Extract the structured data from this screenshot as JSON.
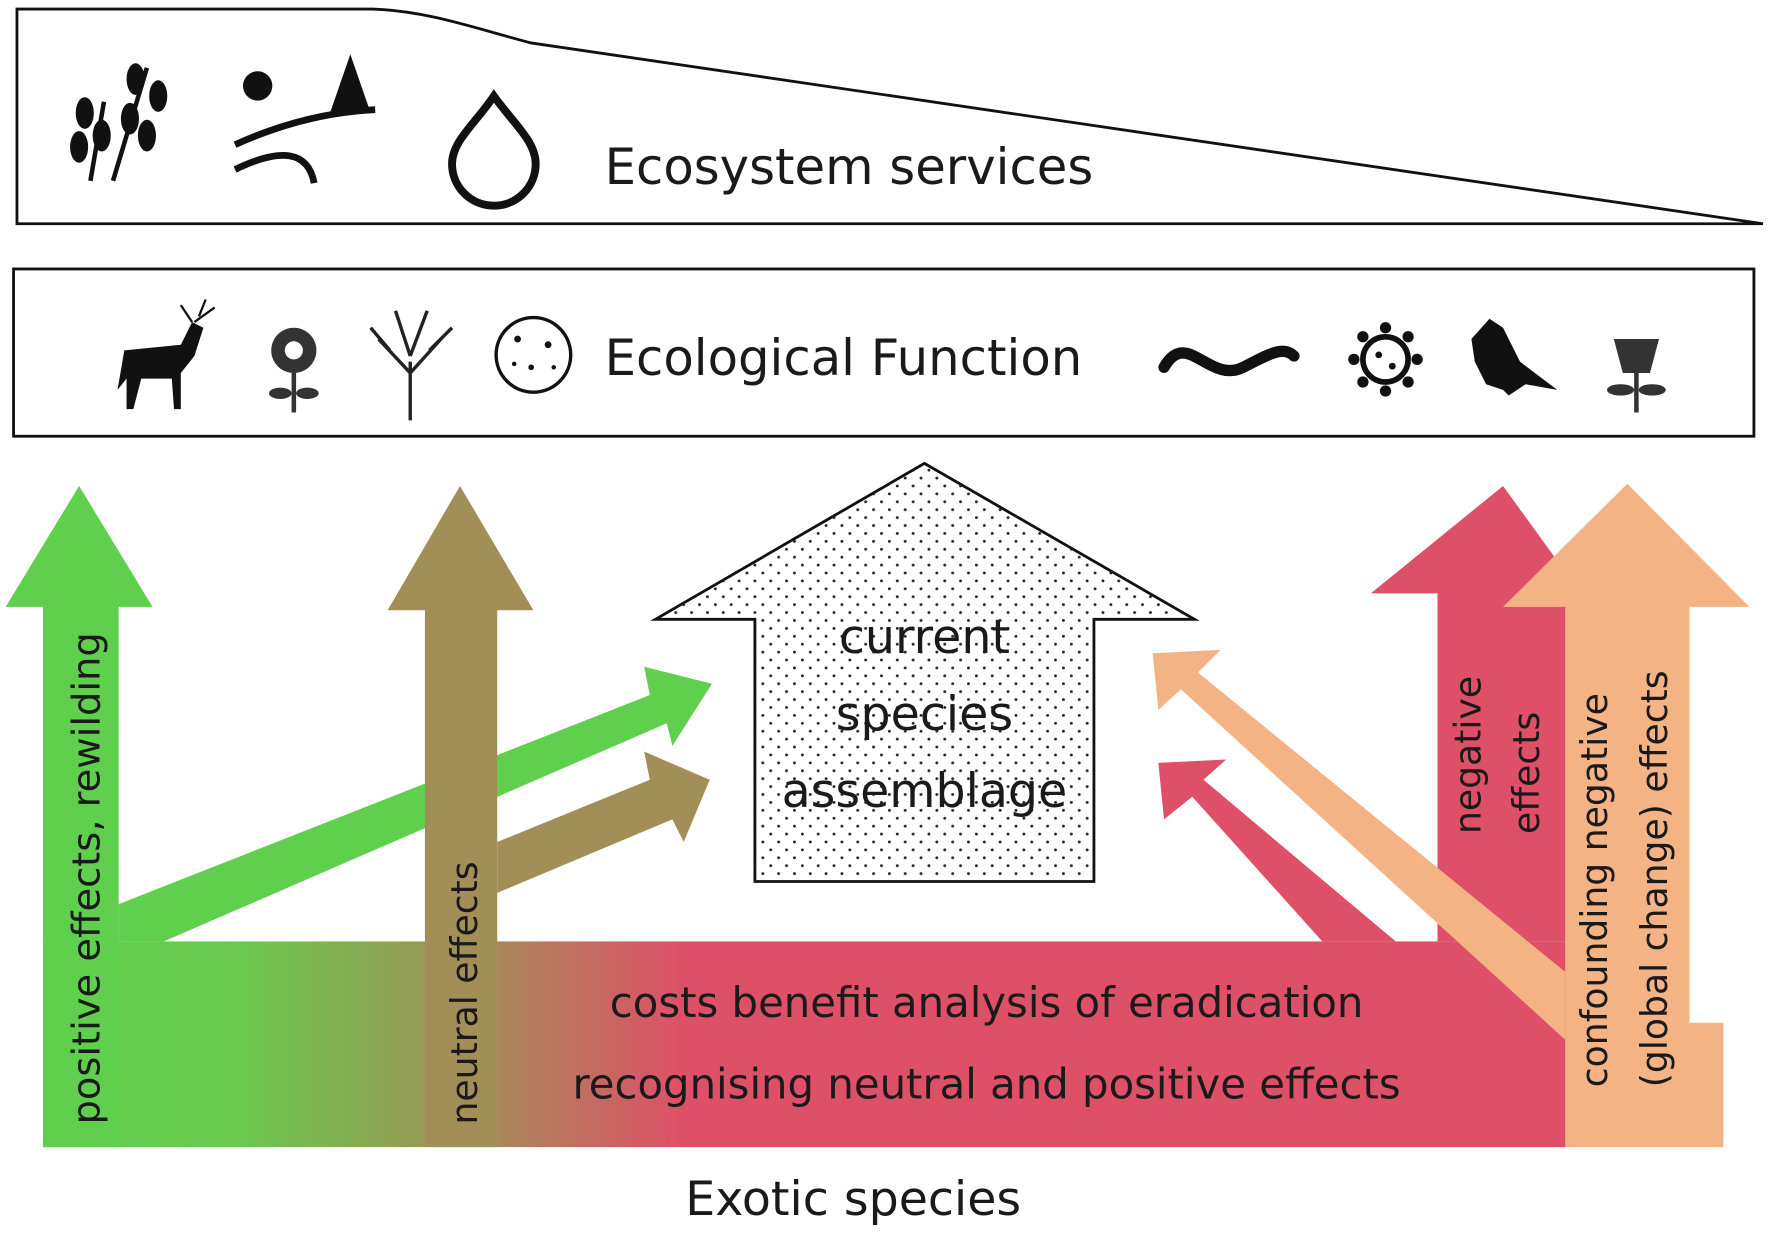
{
  "top_panel": {
    "label": "Ecosystem services",
    "icons": [
      "wheat-icon",
      "landscape-tree-icon",
      "water-drop-icon"
    ]
  },
  "function_panel": {
    "label": "Ecological Function",
    "icons": [
      "deer-icon",
      "flower-icon",
      "tree-icon",
      "microbe-icon",
      "worm-icon",
      "virus-icon",
      "crow-icon",
      "bell-flower-icon"
    ]
  },
  "center": {
    "lines": [
      "current",
      "species",
      "assemblage"
    ]
  },
  "arrows": {
    "positive": "positive effects, rewilding",
    "neutral": "neutral effects",
    "negative": [
      "negative",
      "effects"
    ],
    "confounding": [
      "confounding negative",
      "(global change) effects"
    ]
  },
  "base": {
    "line1": "costs benefit analysis of eradication",
    "line2": "recognising neutral and positive effects"
  },
  "footer": "Exotic species",
  "colors": {
    "green": "#5fcf4d",
    "olive": "#a28f58",
    "red": "#de5068",
    "orange": "#f3b385"
  }
}
